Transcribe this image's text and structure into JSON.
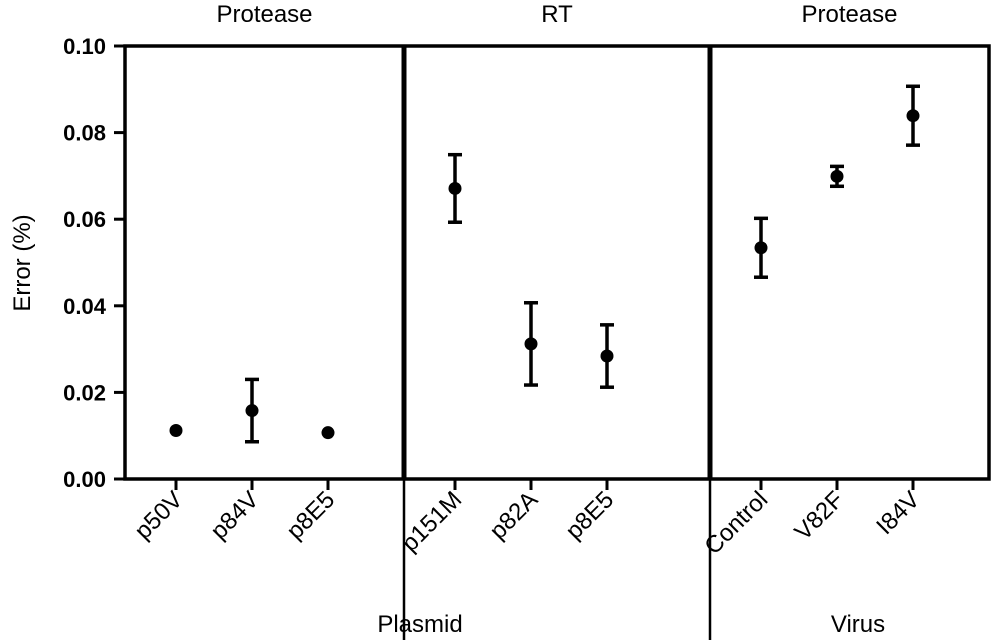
{
  "chart_data": {
    "type": "scatter",
    "ylabel": "Error (%)",
    "ylim": [
      0,
      0.1
    ],
    "yticks": [
      "0.00",
      "0.02",
      "0.04",
      "0.06",
      "0.08",
      "0.10"
    ],
    "grid": false,
    "color": "#000000",
    "panels": [
      {
        "title": "Protease",
        "categories": [
          "p50V",
          "p84V",
          "p8E5"
        ],
        "values": [
          0.0112,
          0.0158,
          0.0107
        ],
        "errors": [
          0.0,
          0.0072,
          0.0
        ]
      },
      {
        "title": "RT",
        "categories": [
          "p151M",
          "p82A",
          "p8E5"
        ],
        "values": [
          0.0671,
          0.0312,
          0.0284
        ],
        "errors": [
          0.0078,
          0.0095,
          0.0072
        ]
      },
      {
        "title": "Protease",
        "categories": [
          "Control",
          "V82F",
          "I84V"
        ],
        "values": [
          0.0534,
          0.0699,
          0.0839
        ],
        "errors": [
          0.0068,
          0.0023,
          0.0068
        ]
      }
    ],
    "group_labels": [
      "Plasmid",
      "Virus"
    ]
  }
}
